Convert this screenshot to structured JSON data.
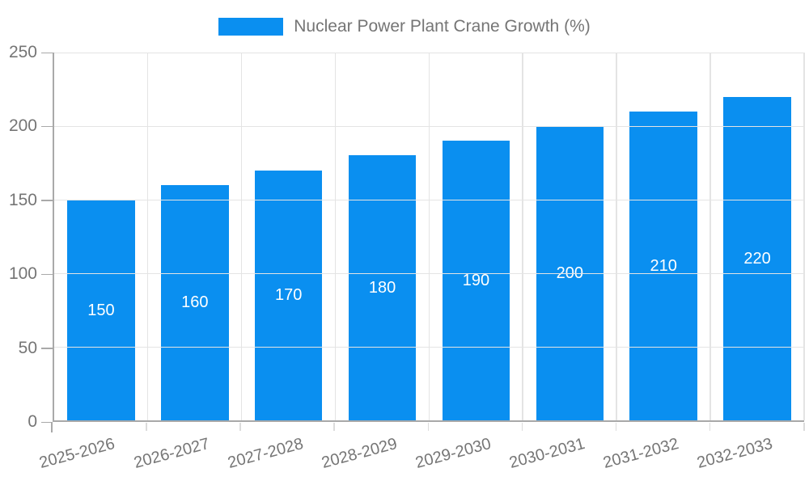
{
  "legend": {
    "label": "Nuclear Power Plant Crane Growth (%)"
  },
  "chart_data": {
    "type": "bar",
    "title": "Nuclear Power Plant Crane Growth (%)",
    "categories": [
      "2025-2026",
      "2026-2027",
      "2027-2028",
      "2028-2029",
      "2029-2030",
      "2030-2031",
      "2031-2032",
      "2032-2033"
    ],
    "values": [
      150,
      160,
      170,
      180,
      190,
      200,
      210,
      220
    ],
    "xlabel": "",
    "ylabel": "",
    "ylim": [
      0,
      250
    ],
    "yticks": [
      0,
      50,
      100,
      150,
      200,
      250
    ],
    "grid": true,
    "legend_position": "top",
    "bar_color": "#0a8ff0",
    "value_label_color": "#ffffff",
    "axis_color": "#a9a9a9",
    "grid_color": "#e4e4e4",
    "tick_text_color": "#757575"
  }
}
